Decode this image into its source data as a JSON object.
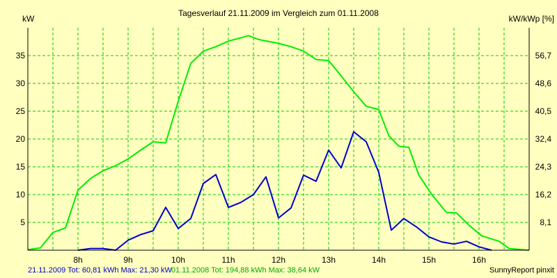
{
  "chart_data": {
    "type": "line",
    "title": "Tagesverlauf 21.11.2009 im Vergleich zum 01.11.2008",
    "ylabel_left": "kW",
    "ylabel_right": "kW/kWp [%]",
    "ylim": [
      0,
      40
    ],
    "y_ticks_left": [
      "5",
      "10",
      "15",
      "20",
      "25",
      "30",
      "35"
    ],
    "y_ticks_left_values": [
      5,
      10,
      15,
      20,
      25,
      30,
      35
    ],
    "y_ticks_right": [
      "8,1",
      "16,2",
      "24,3",
      "32,4",
      "40,5",
      "48,6",
      "56,7"
    ],
    "y_ticks_right_values": [
      5,
      10,
      15,
      20,
      25,
      30,
      35
    ],
    "x_range": [
      7.0,
      17.0
    ],
    "x_ticks": [
      "8h",
      "9h",
      "10h",
      "11h",
      "12h",
      "13h",
      "14h",
      "15h",
      "16h"
    ],
    "x_tick_values": [
      8,
      9,
      10,
      11,
      12,
      13,
      14,
      15,
      16
    ],
    "x_grid_values": [
      7.5,
      8,
      8.5,
      9,
      9.5,
      10,
      10.5,
      11,
      11.5,
      12,
      12.5,
      13,
      13.5,
      14,
      14.5,
      15,
      15.5,
      16,
      16.5
    ],
    "grid": true,
    "colors": {
      "background": "#ffffc0",
      "plot": "#ffffc0",
      "grid": "#00cc00",
      "frame": "#000000"
    },
    "series": [
      {
        "name": "01.11.2008",
        "color": "#00ee00",
        "x": [
          7.0,
          7.25,
          7.5,
          7.75,
          8.0,
          8.25,
          8.5,
          8.75,
          9.0,
          9.25,
          9.5,
          9.75,
          10.0,
          10.25,
          10.5,
          10.75,
          11.0,
          11.25,
          11.4,
          11.6,
          12.0,
          12.25,
          12.5,
          12.75,
          13.0,
          13.2,
          13.5,
          13.75,
          14.0,
          14.2,
          14.4,
          14.6,
          14.8,
          15.05,
          15.35,
          15.55,
          15.8,
          16.05,
          16.4,
          16.6,
          17.0
        ],
        "y": [
          0.1,
          0.4,
          3.2,
          4.0,
          10.8,
          12.9,
          14.3,
          15.2,
          16.4,
          18.0,
          19.5,
          19.3,
          26.8,
          33.6,
          35.8,
          36.6,
          37.6,
          38.2,
          38.6,
          37.9,
          37.2,
          36.6,
          35.8,
          34.3,
          34.1,
          31.9,
          28.5,
          25.9,
          25.3,
          20.6,
          18.7,
          18.5,
          13.5,
          10.1,
          6.8,
          6.7,
          4.5,
          2.6,
          1.6,
          0.3,
          0.0
        ]
      },
      {
        "name": "21.11.2009",
        "color": "#0000cc",
        "x": [
          8.0,
          8.25,
          8.5,
          8.75,
          9.0,
          9.25,
          9.5,
          9.75,
          10.0,
          10.25,
          10.5,
          10.75,
          11.0,
          11.25,
          11.5,
          11.75,
          12.0,
          12.25,
          12.5,
          12.75,
          13.0,
          13.25,
          13.5,
          13.75,
          14.0,
          14.25,
          14.5,
          14.75,
          15.0,
          15.25,
          15.5,
          15.75,
          16.0,
          16.25
        ],
        "y": [
          0.0,
          0.3,
          0.3,
          0.0,
          1.8,
          2.8,
          3.5,
          7.7,
          3.9,
          5.7,
          12.0,
          13.6,
          7.7,
          8.6,
          10.0,
          13.2,
          5.8,
          7.6,
          13.5,
          12.4,
          18.0,
          14.8,
          21.3,
          19.5,
          14.0,
          3.6,
          5.7,
          4.2,
          2.4,
          1.5,
          1.1,
          1.6,
          0.6,
          0.0
        ]
      }
    ],
    "legend_entries": [
      {
        "text": "21.11.2009 Tot: 60,81 kWh Max: 21,30 kW",
        "color": "#0000cc"
      },
      {
        "text": "01.11.2008 Tot: 194,88 kWh Max: 38,64 kW",
        "color": "#00aa00"
      }
    ],
    "footer_right": "SunnyReport pinxit"
  }
}
